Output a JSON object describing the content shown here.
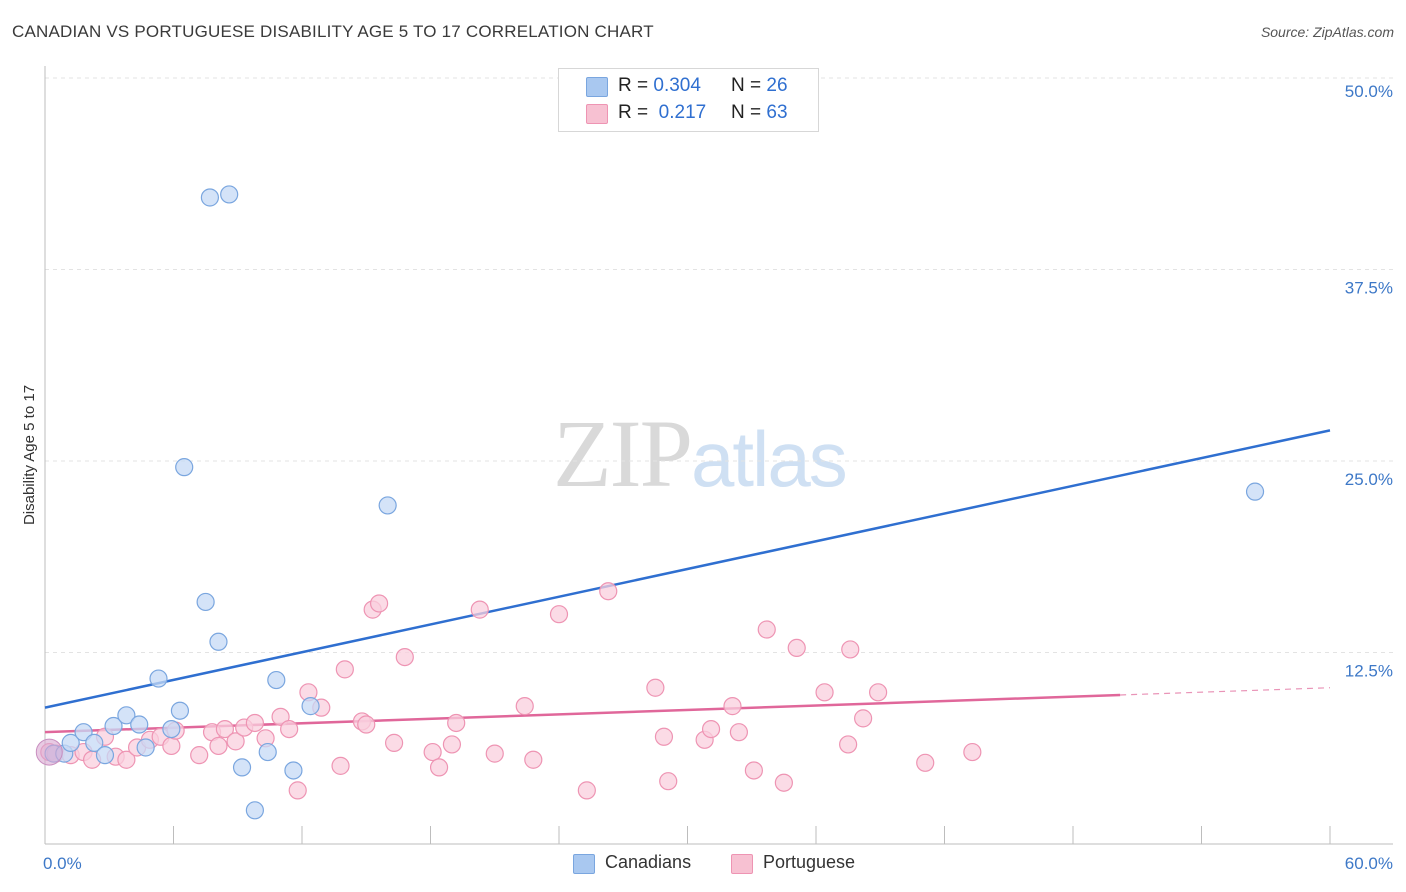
{
  "title": "CANADIAN VS PORTUGUESE DISABILITY AGE 5 TO 17 CORRELATION CHART",
  "source": "Source: ZipAtlas.com",
  "watermark": {
    "zip": "ZIP",
    "atlas": "atlas"
  },
  "legend_top": [
    {
      "r_label": "R =",
      "r_value": "0.304",
      "n_label": "N =",
      "n_value": "26",
      "color": "#a9c8f0",
      "border": "#7aa6df"
    },
    {
      "r_label": "R =",
      "r_value": "0.217",
      "n_label": "N =",
      "n_value": "63",
      "color": "#f7c1d2",
      "border": "#ee94b3"
    }
  ],
  "legend_bottom": [
    {
      "label": "Canadians",
      "color": "#a9c8f0",
      "border": "#7aa6df"
    },
    {
      "label": "Portuguese",
      "color": "#f7c1d2",
      "border": "#ee94b3"
    }
  ],
  "chart_data": {
    "type": "scatter",
    "title": "CANADIAN VS PORTUGUESE DISABILITY AGE 5 TO 17 CORRELATION CHART",
    "xlabel": "",
    "ylabel": "Disability Age 5 to 17",
    "xlim": [
      0,
      60
    ],
    "ylim": [
      0,
      50
    ],
    "x_tick_labels": [
      "0.0%",
      "60.0%"
    ],
    "y_ticks": [
      12.5,
      25.0,
      37.5,
      50.0
    ],
    "y_tick_labels": [
      "12.5%",
      "25.0%",
      "37.5%",
      "50.0%"
    ],
    "grid": true,
    "series": [
      {
        "name": "Canadians",
        "color": "#7aa6df",
        "fill": "#c5daf5",
        "trend_color": "#2f6fd0",
        "trend": {
          "x0": 0,
          "y0": 8.9,
          "x1": 60,
          "y1": 27.0,
          "dashed_from": null
        },
        "points": [
          [
            0.4,
            5.9
          ],
          [
            0.9,
            5.9
          ],
          [
            1.2,
            6.6
          ],
          [
            1.8,
            7.3
          ],
          [
            2.3,
            6.6
          ],
          [
            2.8,
            5.8
          ],
          [
            3.2,
            7.7
          ],
          [
            3.8,
            8.4
          ],
          [
            4.4,
            7.8
          ],
          [
            4.7,
            6.3
          ],
          [
            5.3,
            10.8
          ],
          [
            5.9,
            7.5
          ],
          [
            6.3,
            8.7
          ],
          [
            6.5,
            24.6
          ],
          [
            7.5,
            15.8
          ],
          [
            7.7,
            42.2
          ],
          [
            8.1,
            13.2
          ],
          [
            8.6,
            42.4
          ],
          [
            9.2,
            5.0
          ],
          [
            9.8,
            2.2
          ],
          [
            10.4,
            6.0
          ],
          [
            10.8,
            10.7
          ],
          [
            11.6,
            4.8
          ],
          [
            12.4,
            9.0
          ],
          [
            16.0,
            22.1
          ],
          [
            56.5,
            23.0
          ]
        ]
      },
      {
        "name": "Portuguese",
        "color": "#ee94b3",
        "fill": "#f9cfdd",
        "trend_color": "#e0679a",
        "trend": {
          "x0": 0,
          "y0": 7.3,
          "x1": 60,
          "y1": 10.2,
          "dashed_from": 50.2
        },
        "points": [
          [
            0.2,
            6.0
          ],
          [
            0.5,
            5.9
          ],
          [
            1.2,
            5.8
          ],
          [
            1.8,
            6.0
          ],
          [
            2.2,
            5.5
          ],
          [
            2.8,
            7.0
          ],
          [
            3.3,
            5.7
          ],
          [
            3.8,
            5.5
          ],
          [
            4.3,
            6.3
          ],
          [
            4.9,
            6.8
          ],
          [
            5.4,
            7.0
          ],
          [
            5.9,
            6.4
          ],
          [
            6.1,
            7.4
          ],
          [
            7.2,
            5.8
          ],
          [
            7.8,
            7.3
          ],
          [
            8.1,
            6.4
          ],
          [
            8.4,
            7.5
          ],
          [
            8.9,
            6.7
          ],
          [
            9.3,
            7.6
          ],
          [
            9.8,
            7.9
          ],
          [
            10.3,
            6.9
          ],
          [
            11.0,
            8.3
          ],
          [
            11.4,
            7.5
          ],
          [
            11.8,
            3.5
          ],
          [
            12.3,
            9.9
          ],
          [
            12.9,
            8.9
          ],
          [
            13.8,
            5.1
          ],
          [
            14.0,
            11.4
          ],
          [
            14.8,
            8.0
          ],
          [
            15.0,
            7.8
          ],
          [
            15.3,
            15.3
          ],
          [
            15.6,
            15.7
          ],
          [
            16.3,
            6.6
          ],
          [
            16.8,
            12.2
          ],
          [
            18.1,
            6.0
          ],
          [
            18.4,
            5.0
          ],
          [
            19.0,
            6.5
          ],
          [
            19.2,
            7.9
          ],
          [
            20.3,
            15.3
          ],
          [
            21.0,
            5.9
          ],
          [
            22.4,
            9.0
          ],
          [
            22.8,
            5.5
          ],
          [
            24.0,
            15.0
          ],
          [
            25.3,
            3.5
          ],
          [
            26.3,
            16.5
          ],
          [
            28.5,
            10.2
          ],
          [
            28.9,
            7.0
          ],
          [
            29.1,
            4.1
          ],
          [
            30.8,
            6.8
          ],
          [
            31.1,
            7.5
          ],
          [
            32.1,
            9.0
          ],
          [
            32.4,
            7.3
          ],
          [
            33.1,
            4.8
          ],
          [
            33.7,
            14.0
          ],
          [
            34.5,
            4.0
          ],
          [
            35.1,
            12.8
          ],
          [
            36.4,
            9.9
          ],
          [
            37.5,
            6.5
          ],
          [
            37.6,
            12.7
          ],
          [
            38.2,
            8.2
          ],
          [
            38.9,
            9.9
          ],
          [
            41.1,
            5.3
          ],
          [
            43.3,
            6.0
          ]
        ]
      }
    ]
  }
}
